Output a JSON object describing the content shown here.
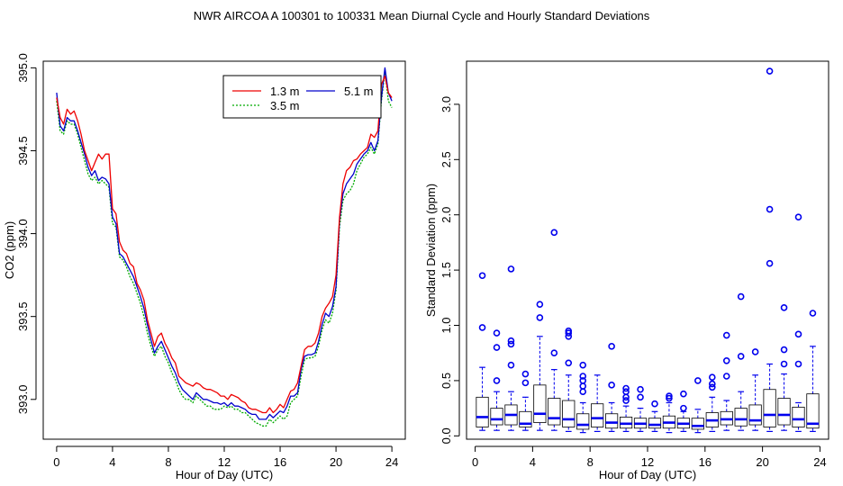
{
  "figure": {
    "title": "NWR   AIRCOA A   100301 to 100331   Mean Diurnal Cycle and Hourly Standard Deviations"
  },
  "chart_data": [
    {
      "type": "line",
      "title": "",
      "xlabel": "Hour of Day (UTC)",
      "ylabel": "CO2 (ppm)",
      "xlim": [
        -0.96,
        24.96
      ],
      "ylim": [
        392.76,
        395.04
      ],
      "xticks": [
        0,
        4,
        8,
        12,
        16,
        20,
        24
      ],
      "yticks": [
        393.0,
        393.5,
        394.0,
        394.5,
        395.0
      ],
      "ytick_labels": [
        "393.0",
        "393.5",
        "394.0",
        "394.5",
        "395.0"
      ],
      "grid": false,
      "legend": {
        "position": "top-right",
        "entries": [
          {
            "label": "1.3 m",
            "color": "#ee0000",
            "dash": "solid"
          },
          {
            "label": "5.1 m",
            "color": "#0000cc",
            "dash": "solid"
          },
          {
            "label": "3.5 m",
            "color": "#00aa00",
            "dash": "dotted"
          }
        ]
      },
      "x": [
        0.0,
        0.25,
        0.5,
        0.75,
        1.0,
        1.25,
        1.5,
        1.75,
        2.0,
        2.25,
        2.5,
        2.75,
        3.0,
        3.25,
        3.5,
        3.75,
        4.0,
        4.25,
        4.5,
        4.75,
        5.0,
        5.25,
        5.5,
        5.75,
        6.0,
        6.25,
        6.5,
        6.75,
        7.0,
        7.25,
        7.5,
        7.75,
        8.0,
        8.25,
        8.5,
        8.75,
        9.0,
        9.25,
        9.5,
        9.75,
        10.0,
        10.25,
        10.5,
        10.75,
        11.0,
        11.25,
        11.5,
        11.75,
        12.0,
        12.25,
        12.5,
        12.75,
        13.0,
        13.25,
        13.5,
        13.75,
        14.0,
        14.25,
        14.5,
        14.75,
        15.0,
        15.25,
        15.5,
        15.75,
        16.0,
        16.25,
        16.5,
        16.75,
        17.0,
        17.25,
        17.5,
        17.75,
        18.0,
        18.25,
        18.5,
        18.75,
        19.0,
        19.25,
        19.5,
        19.75,
        20.0,
        20.25,
        20.5,
        20.75,
        21.0,
        21.25,
        21.5,
        21.75,
        22.0,
        22.25,
        22.5,
        22.75,
        23.0,
        23.25,
        23.5,
        23.75,
        24.0
      ],
      "series": [
        {
          "name": "1.3 m",
          "color": "#ee0000",
          "values": [
            394.82,
            394.7,
            394.66,
            394.75,
            394.72,
            394.74,
            394.68,
            394.6,
            394.5,
            394.44,
            394.38,
            394.43,
            394.48,
            394.45,
            394.48,
            394.48,
            394.15,
            394.12,
            393.95,
            393.9,
            393.88,
            393.82,
            393.8,
            393.7,
            393.66,
            393.6,
            393.48,
            393.4,
            393.32,
            393.38,
            393.4,
            393.34,
            393.3,
            393.25,
            393.22,
            393.14,
            393.12,
            393.1,
            393.09,
            393.08,
            393.1,
            393.09,
            393.07,
            393.06,
            393.06,
            393.05,
            393.04,
            393.02,
            393.02,
            393.0,
            393.03,
            393.02,
            393.01,
            392.99,
            392.98,
            392.95,
            392.94,
            392.94,
            392.93,
            392.92,
            392.92,
            392.95,
            392.92,
            392.94,
            392.97,
            392.95,
            393.0,
            393.05,
            393.06,
            393.1,
            393.2,
            393.3,
            393.32,
            393.32,
            393.34,
            393.4,
            393.5,
            393.55,
            393.58,
            393.62,
            393.75,
            394.1,
            394.3,
            394.38,
            394.4,
            394.44,
            394.45,
            394.48,
            394.5,
            394.52,
            394.6,
            394.58,
            394.62,
            394.9,
            394.95,
            394.85,
            394.82
          ]
        },
        {
          "name": "5.1 m",
          "color": "#0000cc",
          "values": [
            394.85,
            394.65,
            394.62,
            394.7,
            394.68,
            394.68,
            394.62,
            394.55,
            394.48,
            394.4,
            394.35,
            394.38,
            394.32,
            394.34,
            394.33,
            394.3,
            394.1,
            394.06,
            393.88,
            393.86,
            393.82,
            393.78,
            393.74,
            393.68,
            393.62,
            393.55,
            393.45,
            393.36,
            393.28,
            393.32,
            393.35,
            393.3,
            393.25,
            393.2,
            393.16,
            393.1,
            393.06,
            393.04,
            393.02,
            393.0,
            393.04,
            393.02,
            393.0,
            393.0,
            392.99,
            392.98,
            392.98,
            392.97,
            392.98,
            392.96,
            392.98,
            392.96,
            392.96,
            392.95,
            392.94,
            392.92,
            392.91,
            392.91,
            392.88,
            392.88,
            392.88,
            392.91,
            392.89,
            392.91,
            392.93,
            392.92,
            392.96,
            393.02,
            393.02,
            393.04,
            393.18,
            393.26,
            393.27,
            393.27,
            393.28,
            393.35,
            393.45,
            393.52,
            393.5,
            393.56,
            393.68,
            394.08,
            394.24,
            394.3,
            394.33,
            394.36,
            394.42,
            394.45,
            394.48,
            394.5,
            394.55,
            394.5,
            394.56,
            394.82,
            395.0,
            394.85,
            394.8
          ]
        },
        {
          "name": "3.5 m",
          "color": "#00aa00",
          "values": [
            394.8,
            394.62,
            394.6,
            394.68,
            394.66,
            394.66,
            394.6,
            394.52,
            394.44,
            394.36,
            394.32,
            394.34,
            394.3,
            394.32,
            394.3,
            394.28,
            394.06,
            394.04,
            393.86,
            393.84,
            393.8,
            393.74,
            393.7,
            393.64,
            393.58,
            393.5,
            393.4,
            393.32,
            393.26,
            393.3,
            393.32,
            393.26,
            393.22,
            393.16,
            393.12,
            393.06,
            393.02,
            393.0,
            393.0,
            392.98,
            393.02,
            393.0,
            392.98,
            392.96,
            392.96,
            392.94,
            392.94,
            392.94,
            392.96,
            392.95,
            392.96,
            392.94,
            392.94,
            392.92,
            392.92,
            392.9,
            392.88,
            392.86,
            392.85,
            392.84,
            392.84,
            392.88,
            392.86,
            392.88,
            392.9,
            392.88,
            392.9,
            392.98,
            393.0,
            393.02,
            393.14,
            393.24,
            393.25,
            393.25,
            393.26,
            393.32,
            393.42,
            393.48,
            393.46,
            393.52,
            393.66,
            394.04,
            394.2,
            394.24,
            394.26,
            394.3,
            394.38,
            394.42,
            394.46,
            394.48,
            394.52,
            394.48,
            394.54,
            394.8,
            394.98,
            394.8,
            394.76
          ]
        }
      ]
    },
    {
      "type": "box",
      "title": "",
      "xlabel": "Hour of Day (UTC)",
      "ylabel": "Standard Deviation (ppm)",
      "xlim": [
        -0.6,
        24.6
      ],
      "ylim": [
        -0.03,
        3.39
      ],
      "xticks": [
        0,
        4,
        8,
        12,
        16,
        20,
        24
      ],
      "yticks": [
        0.0,
        0.5,
        1.0,
        1.5,
        2.0,
        2.5,
        3.0
      ],
      "ytick_labels": [
        "0.0",
        "0.5",
        "1.0",
        "1.5",
        "2.0",
        "2.5",
        "3.0"
      ],
      "grid": false,
      "box_color": "#000000",
      "median_color": "#0000ee",
      "whisker_color": "#0000ee",
      "outlier_color": "#0000ee",
      "boxes": [
        {
          "x": 0.5,
          "q1": 0.08,
          "median": 0.17,
          "q3": 0.35,
          "whisker_low": 0.05,
          "whisker_high": 0.62,
          "outliers": [
            0.98,
            1.45
          ]
        },
        {
          "x": 1.5,
          "q1": 0.1,
          "median": 0.15,
          "q3": 0.25,
          "whisker_low": 0.05,
          "whisker_high": 0.4,
          "outliers": [
            0.5,
            0.8,
            0.93
          ]
        },
        {
          "x": 2.5,
          "q1": 0.1,
          "median": 0.19,
          "q3": 0.28,
          "whisker_low": 0.05,
          "whisker_high": 0.4,
          "outliers": [
            0.64,
            0.83,
            0.86,
            1.51
          ]
        },
        {
          "x": 3.5,
          "q1": 0.08,
          "median": 0.11,
          "q3": 0.22,
          "whisker_low": 0.05,
          "whisker_high": 0.35,
          "outliers": [
            0.48,
            0.56
          ]
        },
        {
          "x": 4.5,
          "q1": 0.12,
          "median": 0.2,
          "q3": 0.46,
          "whisker_low": 0.05,
          "whisker_high": 0.9,
          "outliers": [
            1.07,
            1.19
          ]
        },
        {
          "x": 5.5,
          "q1": 0.1,
          "median": 0.16,
          "q3": 0.34,
          "whisker_low": 0.05,
          "whisker_high": 0.6,
          "outliers": [
            0.75,
            1.84
          ]
        },
        {
          "x": 6.5,
          "q1": 0.08,
          "median": 0.15,
          "q3": 0.32,
          "whisker_low": 0.04,
          "whisker_high": 0.55,
          "outliers": [
            0.66,
            0.9,
            0.93,
            0.95
          ]
        },
        {
          "x": 7.5,
          "q1": 0.06,
          "median": 0.1,
          "q3": 0.2,
          "whisker_low": 0.03,
          "whisker_high": 0.3,
          "outliers": [
            0.4,
            0.45,
            0.5,
            0.54,
            0.64
          ]
        },
        {
          "x": 8.5,
          "q1": 0.08,
          "median": 0.16,
          "q3": 0.29,
          "whisker_low": 0.04,
          "whisker_high": 0.55,
          "outliers": []
        },
        {
          "x": 9.5,
          "q1": 0.07,
          "median": 0.12,
          "q3": 0.2,
          "whisker_low": 0.04,
          "whisker_high": 0.3,
          "outliers": [
            0.46,
            0.81
          ]
        },
        {
          "x": 10.5,
          "q1": 0.07,
          "median": 0.11,
          "q3": 0.17,
          "whisker_low": 0.04,
          "whisker_high": 0.27,
          "outliers": [
            0.32,
            0.35,
            0.4,
            0.43
          ]
        },
        {
          "x": 11.5,
          "q1": 0.07,
          "median": 0.11,
          "q3": 0.16,
          "whisker_low": 0.04,
          "whisker_high": 0.25,
          "outliers": [
            0.35,
            0.42
          ]
        },
        {
          "x": 12.5,
          "q1": 0.07,
          "median": 0.1,
          "q3": 0.16,
          "whisker_low": 0.04,
          "whisker_high": 0.22,
          "outliers": [
            0.29
          ]
        },
        {
          "x": 13.5,
          "q1": 0.07,
          "median": 0.12,
          "q3": 0.18,
          "whisker_low": 0.03,
          "whisker_high": 0.3,
          "outliers": [
            0.34,
            0.36
          ]
        },
        {
          "x": 14.5,
          "q1": 0.07,
          "median": 0.11,
          "q3": 0.16,
          "whisker_low": 0.04,
          "whisker_high": 0.22,
          "outliers": [
            0.25,
            0.38
          ]
        },
        {
          "x": 15.5,
          "q1": 0.06,
          "median": 0.09,
          "q3": 0.16,
          "whisker_low": 0.03,
          "whisker_high": 0.24,
          "outliers": [
            0.5
          ]
        },
        {
          "x": 16.5,
          "q1": 0.08,
          "median": 0.14,
          "q3": 0.21,
          "whisker_low": 0.04,
          "whisker_high": 0.35,
          "outliers": [
            0.44,
            0.47,
            0.53
          ]
        },
        {
          "x": 17.5,
          "q1": 0.1,
          "median": 0.15,
          "q3": 0.22,
          "whisker_low": 0.05,
          "whisker_high": 0.32,
          "outliers": [
            0.54,
            0.68,
            0.91
          ]
        },
        {
          "x": 18.5,
          "q1": 0.09,
          "median": 0.15,
          "q3": 0.25,
          "whisker_low": 0.05,
          "whisker_high": 0.4,
          "outliers": [
            0.72,
            1.26
          ]
        },
        {
          "x": 19.5,
          "q1": 0.1,
          "median": 0.14,
          "q3": 0.28,
          "whisker_low": 0.05,
          "whisker_high": 0.55,
          "outliers": [
            0.76
          ]
        },
        {
          "x": 20.5,
          "q1": 0.08,
          "median": 0.19,
          "q3": 0.42,
          "whisker_low": 0.04,
          "whisker_high": 0.65,
          "outliers": [
            1.56,
            2.05,
            3.3
          ]
        },
        {
          "x": 21.5,
          "q1": 0.1,
          "median": 0.19,
          "q3": 0.34,
          "whisker_low": 0.05,
          "whisker_high": 0.56,
          "outliers": [
            0.65,
            0.78,
            1.16
          ]
        },
        {
          "x": 22.5,
          "q1": 0.08,
          "median": 0.15,
          "q3": 0.26,
          "whisker_low": 0.04,
          "whisker_high": 0.3,
          "outliers": [
            0.65,
            0.92,
            1.98
          ]
        },
        {
          "x": 23.5,
          "q1": 0.07,
          "median": 0.11,
          "q3": 0.38,
          "whisker_low": 0.04,
          "whisker_high": 0.81,
          "outliers": [
            1.11
          ]
        }
      ]
    }
  ]
}
